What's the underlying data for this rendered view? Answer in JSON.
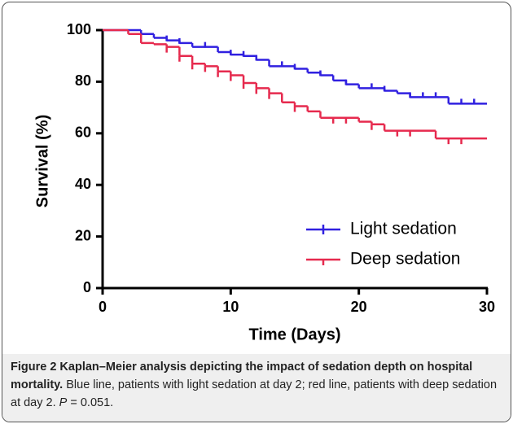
{
  "chart_data": {
    "type": "step",
    "x_label": "Time (Days)",
    "y_label": "Survival (%)",
    "xlim": [
      0,
      30
    ],
    "xticks": [
      0,
      10,
      20,
      30
    ],
    "ylim": [
      0,
      100
    ],
    "yticks": [
      0,
      20,
      40,
      60,
      80,
      100
    ],
    "legend": "lower right",
    "series": [
      {
        "name": "Light sedation",
        "color": "#3020e0",
        "x": [
          0,
          3,
          4,
          5,
          6,
          7,
          9,
          10,
          11,
          12,
          13,
          15,
          16,
          17,
          18,
          19,
          20,
          22,
          23,
          24,
          27
        ],
        "values": [
          100,
          98.5,
          97,
          96,
          95,
          93.5,
          91.5,
          90.5,
          90,
          88.5,
          86,
          85,
          83.5,
          82.5,
          80.5,
          79,
          77.5,
          76.5,
          75.5,
          74,
          71.5
        ],
        "censored": [
          5,
          6,
          8,
          10,
          11,
          12,
          14,
          15,
          17,
          19,
          21,
          22,
          24,
          25,
          26,
          28,
          29
        ]
      },
      {
        "name": "Deep sedation",
        "color": "#e62a4e",
        "x": [
          0,
          2,
          3,
          4,
          5,
          6,
          7,
          8,
          9,
          10,
          11,
          12,
          13,
          14,
          15,
          16,
          17,
          20,
          21,
          22,
          26
        ],
        "values": [
          100,
          98.5,
          95,
          94.5,
          93.5,
          90,
          87,
          86,
          84,
          82.5,
          79.5,
          77.5,
          75.5,
          72,
          70.5,
          68.5,
          66,
          64.5,
          63.5,
          61,
          58
        ],
        "censored": [
          5,
          6,
          7,
          8,
          9,
          10,
          11,
          12,
          13,
          15,
          18,
          19,
          21,
          23,
          24,
          27,
          28
        ]
      }
    ]
  },
  "caption": {
    "title": "Figure 2 Kaplan–Meier analysis depicting the impact of sedation depth on hospital mortality.",
    "text": "Blue line, patients with light sedation at day 2; red line, patients with deep sedation at day 2.",
    "p_label": "P",
    "p_value": "= 0.051."
  }
}
